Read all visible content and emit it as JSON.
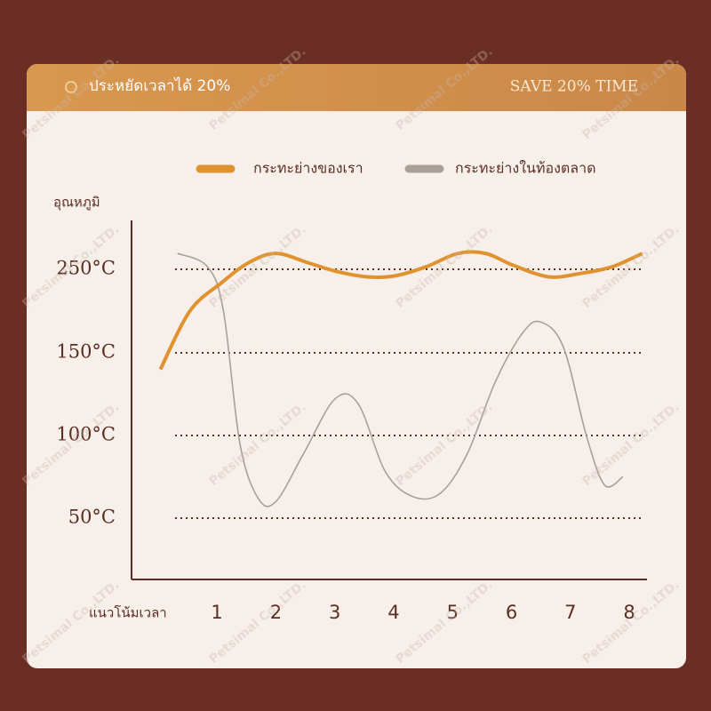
{
  "header": {
    "title": "ประหยัดเวลาได้ 20%",
    "subtitle": "SAVE 20% TIME"
  },
  "watermark": "Petsimal Co.,LTD.",
  "chart_data": {
    "type": "line",
    "y_label": "อุณหภูมิ",
    "x_label": "แนวโน้มเวลา",
    "ylim": [
      15,
      310
    ],
    "xlim": [
      -0.45,
      8.3
    ],
    "yticks": [
      {
        "value": 250,
        "label": "250°C"
      },
      {
        "value": 150,
        "label": "150°C"
      },
      {
        "value": 100,
        "label": "100°C"
      },
      {
        "value": 50,
        "label": "50°C"
      }
    ],
    "xticks": [
      1,
      2,
      3,
      4,
      5,
      6,
      7,
      8
    ],
    "grid": true,
    "legend": "top",
    "series": [
      {
        "name": "กระทะย่างของเรา",
        "color": "#e0922f",
        "x": [
          0.04,
          0.54,
          1.08,
          1.54,
          2.0,
          2.54,
          3.0,
          3.55,
          4.01,
          4.55,
          5.09,
          5.56,
          6.02,
          6.63,
          7.17,
          7.71,
          8.22
        ],
        "values": [
          140,
          200,
          234,
          258,
          269,
          258,
          248,
          241,
          242,
          253,
          269,
          269,
          255,
          241,
          245,
          253,
          269
        ]
      },
      {
        "name": "กระทะย่างในท้องตลาด",
        "color": "#a9a09a",
        "x": [
          0.33,
          0.84,
          1.11,
          1.39,
          1.7,
          2.0,
          2.47,
          3.0,
          3.4,
          3.86,
          4.33,
          4.79,
          5.25,
          5.72,
          6.18,
          6.49,
          6.88,
          7.27,
          7.58,
          7.89
        ],
        "values": [
          269,
          253,
          200,
          95,
          62,
          60,
          89,
          122,
          119,
          78,
          63,
          65,
          89,
          132,
          173,
          187,
          157,
          100,
          70,
          75
        ]
      }
    ]
  }
}
